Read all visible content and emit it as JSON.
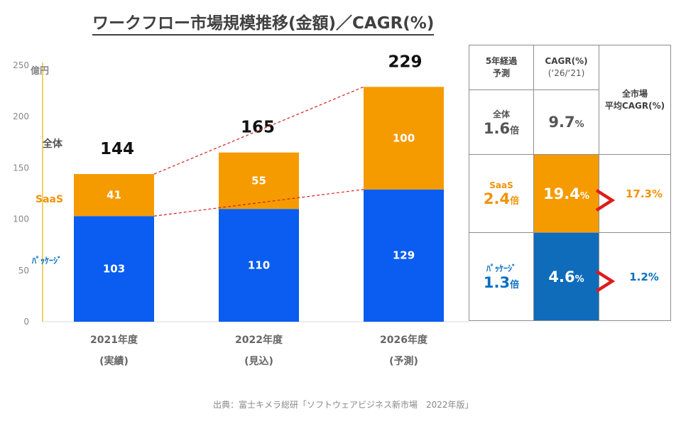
{
  "title": "ワークフロー市場規模推移(金額)／CAGR(%)",
  "source": "出典：富士キメラ総研「ソフトウェアビジネス新市場　2022年版」",
  "colors": {
    "saas": "#f59b00",
    "package": "#0a5df0",
    "accent_red": "#e01b1b",
    "blue_text": "#0a6fc2",
    "orange_text": "#f0930a"
  },
  "chart_data": {
    "type": "bar",
    "stacked": true,
    "title": "ワークフロー市場規模推移(金額)／CAGR(%)",
    "ylabel": "億円",
    "ylim": [
      0,
      250
    ],
    "yticks": [
      0,
      50,
      100,
      150,
      200,
      250
    ],
    "categories": [
      {
        "year": "2021年度",
        "note": "(実績)"
      },
      {
        "year": "2022年度",
        "note": "(見込)"
      },
      {
        "year": "2026年度",
        "note": "(予測)"
      }
    ],
    "series": [
      {
        "name": "パッケージ",
        "values": [
          103,
          110,
          129
        ]
      },
      {
        "name": "SaaS",
        "values": [
          41,
          55,
          100
        ]
      }
    ],
    "totals": [
      144,
      165,
      229
    ],
    "side_labels": {
      "total": "全体",
      "saas": "SaaS",
      "package": "ﾊﾟｯｹｰｼﾞ"
    }
  },
  "table": {
    "col1_header": [
      "5年経過",
      "予測"
    ],
    "col2_header": "CAGR(%)",
    "col2_sub": "(‘26/‘21)",
    "col3_header": [
      "全市場",
      "平均CAGR(%)"
    ],
    "rows": [
      {
        "label": "全体",
        "multiple": "1.6",
        "mult_unit": "倍",
        "cagr": "9.7",
        "pct": "%",
        "market_avg": ""
      },
      {
        "label": "SaaS",
        "multiple": "2.4",
        "mult_unit": "倍",
        "cagr": "19.4",
        "pct": "%",
        "market_avg": "17.3%"
      },
      {
        "label": "ﾊﾟｯｹｰｼﾞ",
        "multiple": "1.3",
        "mult_unit": "倍",
        "cagr": "4.6",
        "pct": "%",
        "market_avg": "1.2%"
      }
    ]
  }
}
